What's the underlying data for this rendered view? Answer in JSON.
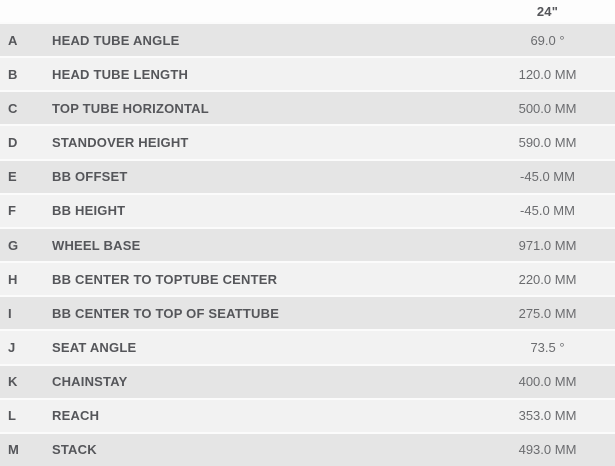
{
  "table": {
    "title": "bike-geometry-specs",
    "size_header": "24\"",
    "columns": [
      "letter",
      "measurement",
      "value"
    ],
    "rows": [
      {
        "letter": "A",
        "label": "HEAD TUBE ANGLE",
        "value": "69.0 °"
      },
      {
        "letter": "B",
        "label": "HEAD TUBE LENGTH",
        "value": "120.0 MM"
      },
      {
        "letter": "C",
        "label": "TOP TUBE HORIZONTAL",
        "value": "500.0 MM"
      },
      {
        "letter": "D",
        "label": "STANDOVER HEIGHT",
        "value": "590.0 MM"
      },
      {
        "letter": "E",
        "label": "BB OFFSET",
        "value": "-45.0 MM"
      },
      {
        "letter": "F",
        "label": "BB HEIGHT",
        "value": "-45.0 MM"
      },
      {
        "letter": "G",
        "label": "WHEEL BASE",
        "value": "971.0 MM"
      },
      {
        "letter": "H",
        "label": "BB CENTER TO TOPTUBE CENTER",
        "value": "220.0 MM"
      },
      {
        "letter": "I",
        "label": "BB CENTER TO TOP OF SEATTUBE",
        "value": "275.0 MM"
      },
      {
        "letter": "J",
        "label": "SEAT ANGLE",
        "value": "73.5 °"
      },
      {
        "letter": "K",
        "label": "CHAINSTAY",
        "value": "400.0 MM"
      },
      {
        "letter": "L",
        "label": "REACH",
        "value": "353.0 MM"
      },
      {
        "letter": "M",
        "label": "STACK",
        "value": "493.0 MM"
      }
    ],
    "colors": {
      "row_dark": "#e5e5e5",
      "row_light": "#f2f2f2",
      "separator": "#fbfbfb",
      "header_bg": "#fdfdfd",
      "label_text": "#55565a",
      "value_text": "#6b6c6f"
    }
  }
}
